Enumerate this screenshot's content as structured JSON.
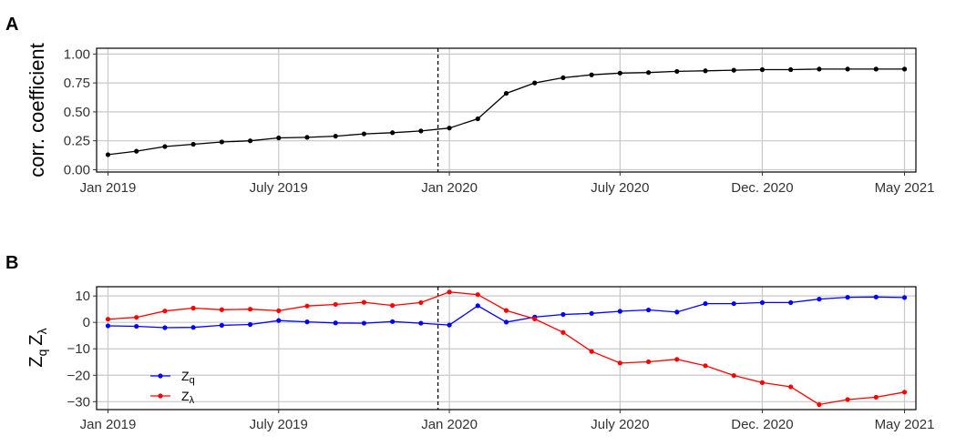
{
  "chart_data": [
    {
      "type": "line",
      "panel": "A",
      "ylabel": "corr. coefficient",
      "xlabel": "",
      "x_ticks": [
        "Jan 2019",
        "July 2019",
        "Jan 2020",
        "July 2020",
        "Dec. 2020",
        "May 2021"
      ],
      "x_tick_months": [
        0,
        6,
        12,
        18,
        23,
        28
      ],
      "y_ticks": [
        "0.00",
        "0.25",
        "0.50",
        "0.75",
        "1.00"
      ],
      "y_tick_values": [
        0,
        0.25,
        0.5,
        0.75,
        1.0
      ],
      "xlim": [
        -0.4,
        28.4
      ],
      "ylim": [
        -0.02,
        1.05
      ],
      "grid": true,
      "vline_month": 11.6,
      "series": [
        {
          "color": "#000000",
          "x": [
            0,
            1,
            2,
            3,
            4,
            5,
            6,
            7,
            8,
            9,
            10,
            11,
            12,
            13,
            14,
            15,
            16,
            17,
            18,
            19,
            20,
            21,
            22,
            23,
            24,
            25,
            26,
            27,
            28
          ],
          "values": [
            0.13,
            0.16,
            0.2,
            0.22,
            0.24,
            0.25,
            0.275,
            0.28,
            0.29,
            0.31,
            0.32,
            0.335,
            0.36,
            0.44,
            0.66,
            0.75,
            0.795,
            0.82,
            0.835,
            0.84,
            0.85,
            0.855,
            0.86,
            0.865,
            0.865,
            0.87,
            0.87,
            0.87,
            0.87
          ]
        }
      ]
    },
    {
      "type": "line",
      "panel": "B",
      "ylabel": "Zq Zλ",
      "xlabel": "",
      "x_ticks": [
        "Jan 2019",
        "July 2019",
        "Jan 2020",
        "July 2020",
        "Dec. 2020",
        "May 2021"
      ],
      "x_tick_months": [
        0,
        6,
        12,
        18,
        23,
        28
      ],
      "y_ticks": [
        "−30",
        "−20",
        "−10",
        "0",
        "10"
      ],
      "y_tick_values": [
        -30,
        -20,
        -10,
        0,
        10
      ],
      "xlim": [
        -0.4,
        28.4
      ],
      "ylim": [
        -33,
        13.5
      ],
      "grid": true,
      "vline_month": 11.6,
      "legend_position": "bottom-left",
      "series": [
        {
          "name": "Zq",
          "color": "#0000ff",
          "x": [
            0,
            1,
            2,
            3,
            4,
            5,
            6,
            7,
            8,
            9,
            10,
            11,
            12,
            13,
            14,
            15,
            16,
            17,
            18,
            19,
            20,
            21,
            22,
            23,
            24,
            25,
            26,
            27,
            28
          ],
          "values": [
            -1.3,
            -1.5,
            -2.0,
            -1.9,
            -1.1,
            -0.8,
            0.7,
            0.2,
            -0.2,
            -0.3,
            0.3,
            -0.3,
            -1.0,
            6.3,
            0.1,
            2.0,
            3.0,
            3.4,
            4.2,
            4.7,
            3.9,
            7.1,
            7.1,
            7.5,
            7.5,
            8.8,
            9.5,
            9.6,
            9.4
          ]
        },
        {
          "name": "Zλ",
          "color": "#ff0000",
          "x": [
            0,
            1,
            2,
            3,
            4,
            5,
            6,
            7,
            8,
            9,
            10,
            11,
            12,
            13,
            14,
            15,
            16,
            17,
            18,
            19,
            20,
            21,
            22,
            23,
            24,
            25,
            26,
            27,
            28
          ],
          "values": [
            1.2,
            1.9,
            4.3,
            5.4,
            4.8,
            5.0,
            4.4,
            6.2,
            6.8,
            7.6,
            6.4,
            7.5,
            11.5,
            10.5,
            4.5,
            1.3,
            -3.8,
            -11.0,
            -15.4,
            -14.9,
            -14.0,
            -16.4,
            -20.1,
            -22.8,
            -24.4,
            -31.1,
            -29.2,
            -28.3,
            -26.4
          ]
        }
      ]
    }
  ]
}
